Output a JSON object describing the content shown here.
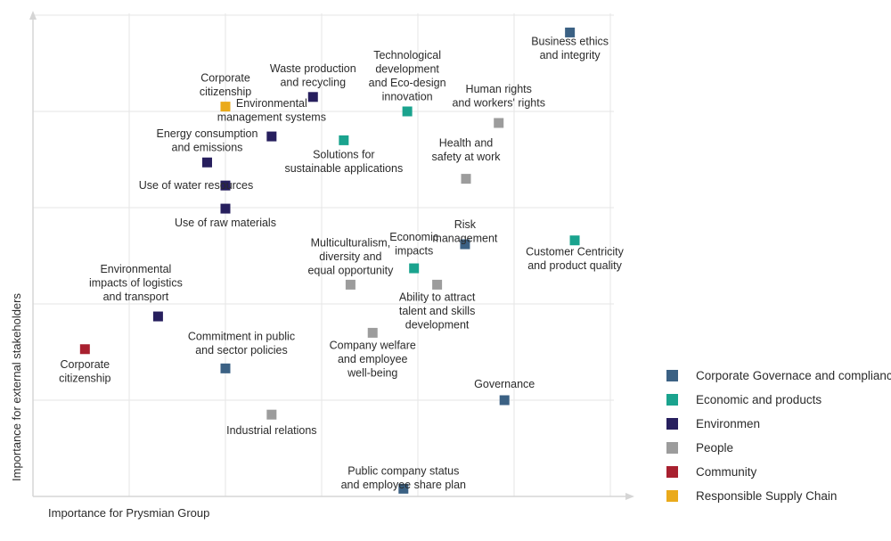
{
  "chart_data": {
    "type": "scatter",
    "xlabel": "Importance for Prysmian Group",
    "ylabel": "Importance for external stakeholders",
    "xlim": [
      0,
      6
    ],
    "ylim": [
      0,
      5
    ],
    "grid": true,
    "legend_position": "right",
    "series": [
      {
        "name": "Corporate Governace and compliance",
        "color": "#3b6184",
        "points": [
          {
            "label": "Business ethics\nand integrity",
            "x": 5.58,
            "y": 4.82
          },
          {
            "label": "Risk\nmanagement",
            "x": 4.49,
            "y": 2.62
          },
          {
            "label": "Commitment in public\nand sector policies",
            "x": 2.0,
            "y": 1.33
          },
          {
            "label": "Governance",
            "x": 4.9,
            "y": 1.0
          },
          {
            "label": "Public company status\nand employee share plan",
            "x": 3.85,
            "y": 0.08
          }
        ]
      },
      {
        "name": "Economic and products",
        "color": "#1aa38e",
        "points": [
          {
            "label": "Technological\ndevelopment\nand Eco-design\ninnovation",
            "x": 3.89,
            "y": 4.0
          },
          {
            "label": "Solutions for\nsustainable applications",
            "x": 3.23,
            "y": 3.7
          },
          {
            "label": "Customer Centricity\nand product quality",
            "x": 5.63,
            "y": 2.66
          },
          {
            "label": "Economic\nimpacts",
            "x": 3.96,
            "y": 2.37
          }
        ]
      },
      {
        "name": "Environmen",
        "color": "#271f5e",
        "points": [
          {
            "label": "Waste production\nand recycling",
            "x": 2.91,
            "y": 4.15
          },
          {
            "label": "Environmental\nmanagement systems",
            "x": 2.48,
            "y": 3.74
          },
          {
            "label": "Energy consumption\nand emissions",
            "x": 1.81,
            "y": 3.47
          },
          {
            "label": "Use of water resources",
            "x": 2.0,
            "y": 3.23
          },
          {
            "label": "Use of raw materials",
            "x": 2.0,
            "y": 2.99
          },
          {
            "label": "Environmental\nimpacts of logistics\nand transport",
            "x": 1.3,
            "y": 1.87
          }
        ]
      },
      {
        "name": "People",
        "color": "#9c9c9c",
        "points": [
          {
            "label": "Human rights\nand workers' rights",
            "x": 4.84,
            "y": 3.88
          },
          {
            "label": "Health and\nsafety at work",
            "x": 4.5,
            "y": 3.3
          },
          {
            "label": "Multiculturalism,\ndiversity and\nequal opportunity",
            "x": 3.3,
            "y": 2.2
          },
          {
            "label": "Ability to attract\ntalent and skills\ndevelopment",
            "x": 4.2,
            "y": 2.2
          },
          {
            "label": "Company welfare\nand employee\nwell-being",
            "x": 3.53,
            "y": 1.7
          },
          {
            "label": "Industrial relations",
            "x": 2.48,
            "y": 0.85
          }
        ]
      },
      {
        "name": "Community",
        "color": "#a8202f",
        "points": [
          {
            "label": "Corporate\ncitizenship",
            "x": 0.54,
            "y": 1.53
          }
        ]
      },
      {
        "name": "Responsible Supply Chain",
        "color": "#eaaa1b",
        "points": [
          {
            "label": "Corporate\ncitizenship",
            "x": 2.0,
            "y": 4.05
          }
        ]
      }
    ]
  }
}
